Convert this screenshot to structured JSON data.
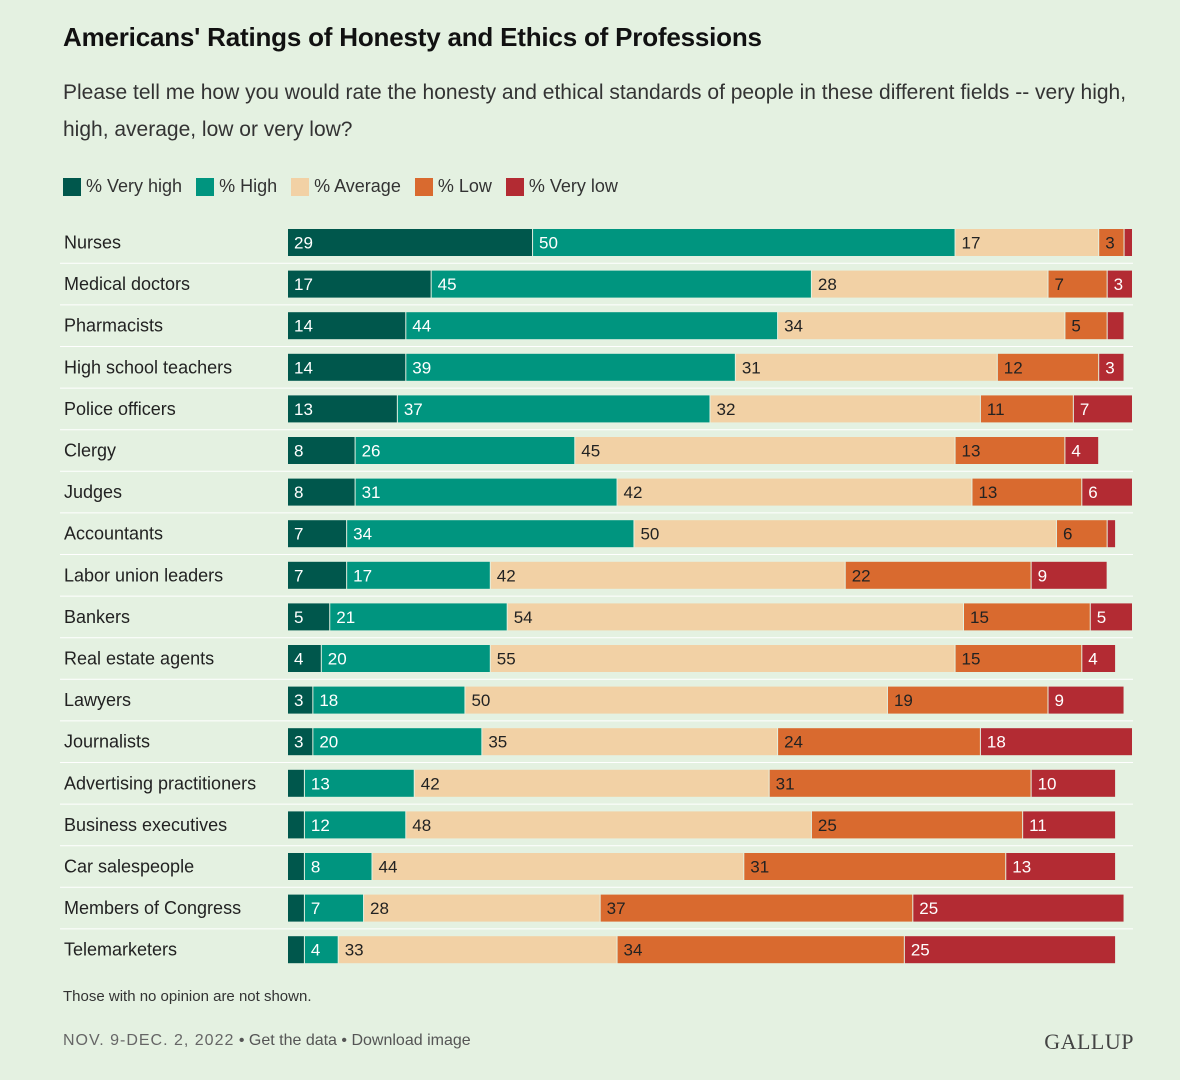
{
  "header": {
    "title": "Americans' Ratings of Honesty and Ethics of Professions",
    "subtitle": "Please tell me how you would rate the honesty and ethical standards of people in these different fields -- very high, high, average, low or very low?"
  },
  "footnote": "Those with no opinion are not shown.",
  "footer": {
    "date": "NOV. 9-DEC. 2, 2022",
    "sep": "•",
    "get_data": "Get the data",
    "download": "Download image",
    "brand": "GALLUP"
  },
  "colors": {
    "very_high": "#00574c",
    "high": "#00957f",
    "average": "#f2d1a5",
    "low": "#d96a2f",
    "very_low": "#b32b33",
    "background": "#e4f1e1"
  },
  "chart_data": {
    "type": "bar",
    "orientation": "horizontal",
    "stacked": true,
    "xlim": [
      0,
      100
    ],
    "legend_position": "top-left",
    "categories": [
      "Nurses",
      "Medical doctors",
      "Pharmacists",
      "High school teachers",
      "Police officers",
      "Clergy",
      "Judges",
      "Accountants",
      "Labor union leaders",
      "Bankers",
      "Real estate agents",
      "Lawyers",
      "Journalists",
      "Advertising practitioners",
      "Business executives",
      "Car salespeople",
      "Members of Congress",
      "Telemarketers"
    ],
    "series": [
      {
        "name": "% Very high",
        "key": "very_high",
        "values": [
          29,
          17,
          14,
          14,
          13,
          8,
          8,
          7,
          7,
          5,
          4,
          3,
          3,
          2,
          2,
          2,
          2,
          2
        ],
        "labels": [
          "29",
          "17",
          "14",
          "14",
          "13",
          "8",
          "8",
          "7",
          "7",
          "5",
          "4",
          "3",
          "3",
          "",
          "",
          "",
          "",
          ""
        ]
      },
      {
        "name": "% High",
        "key": "high",
        "values": [
          50,
          45,
          44,
          39,
          37,
          26,
          31,
          34,
          17,
          21,
          20,
          18,
          20,
          13,
          12,
          8,
          7,
          4
        ],
        "labels": [
          "50",
          "45",
          "44",
          "39",
          "37",
          "26",
          "31",
          "34",
          "17",
          "21",
          "20",
          "18",
          "20",
          "13",
          "12",
          "8",
          "7",
          "4"
        ]
      },
      {
        "name": "% Average",
        "key": "average",
        "values": [
          17,
          28,
          34,
          31,
          32,
          45,
          42,
          50,
          42,
          54,
          55,
          50,
          35,
          42,
          48,
          44,
          28,
          33
        ],
        "labels": [
          "17",
          "28",
          "34",
          "31",
          "32",
          "45",
          "42",
          "50",
          "42",
          "54",
          "55",
          "50",
          "35",
          "42",
          "48",
          "44",
          "28",
          "33"
        ]
      },
      {
        "name": "% Low",
        "key": "low",
        "values": [
          3,
          7,
          5,
          12,
          11,
          13,
          13,
          6,
          22,
          15,
          15,
          19,
          24,
          31,
          25,
          31,
          37,
          34
        ],
        "labels": [
          "3",
          "7",
          "5",
          "12",
          "11",
          "13",
          "13",
          "6",
          "22",
          "15",
          "15",
          "19",
          "24",
          "31",
          "25",
          "31",
          "37",
          "34"
        ]
      },
      {
        "name": "% Very low",
        "key": "very_low",
        "values": [
          1,
          3,
          2,
          3,
          7,
          4,
          6,
          1,
          9,
          5,
          4,
          9,
          18,
          10,
          11,
          13,
          25,
          25
        ],
        "labels": [
          "",
          "3",
          "",
          "3",
          "7",
          "4",
          "6",
          "",
          "9",
          "5",
          "4",
          "9",
          "18",
          "10",
          "11",
          "13",
          "25",
          "25"
        ]
      }
    ]
  }
}
